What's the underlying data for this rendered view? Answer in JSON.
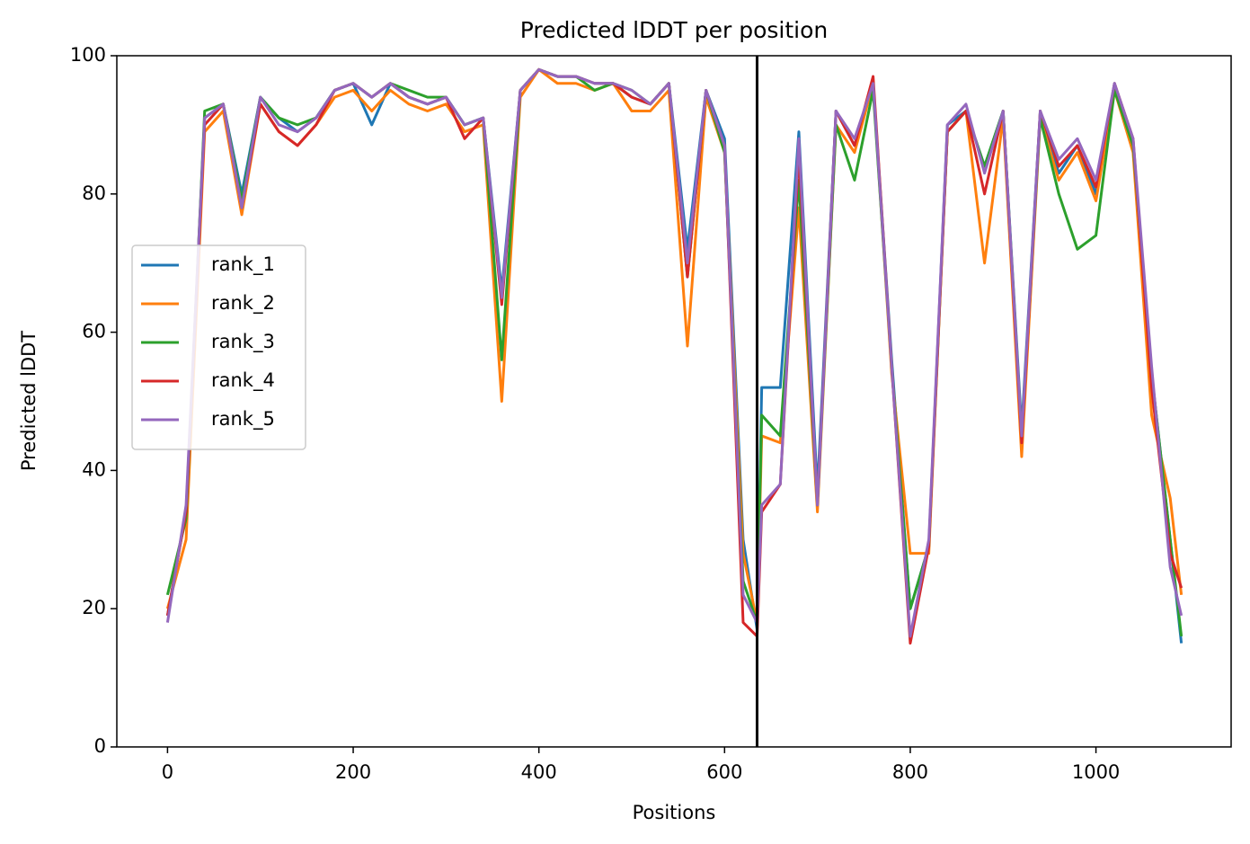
{
  "chart_data": {
    "type": "line",
    "title": "Predicted lDDT per position",
    "x_label": "Positions",
    "y_label": "Predicted lDDT",
    "xlim": [
      -54.6,
      1145.6
    ],
    "ylim": [
      0,
      100
    ],
    "xticks": [
      0,
      200,
      400,
      600,
      800,
      1000
    ],
    "yticks": [
      0,
      20,
      40,
      60,
      80,
      100
    ],
    "grid": false,
    "legend": "center left",
    "vline": 635,
    "vline_color": "#000000",
    "x": [
      0,
      20,
      40,
      60,
      80,
      100,
      120,
      140,
      160,
      180,
      200,
      220,
      240,
      260,
      280,
      300,
      320,
      340,
      360,
      380,
      400,
      420,
      440,
      460,
      480,
      500,
      520,
      540,
      560,
      580,
      600,
      620,
      635,
      640,
      660,
      680,
      700,
      720,
      740,
      760,
      780,
      800,
      820,
      840,
      860,
      880,
      900,
      920,
      940,
      960,
      980,
      1000,
      1020,
      1040,
      1060,
      1080,
      1092
    ],
    "series": [
      {
        "name": "rank_1",
        "color": "#1f77b4",
        "values": [
          19,
          34,
          91,
          93,
          80,
          94,
          91,
          89,
          91,
          95,
          96,
          90,
          96,
          94,
          93,
          94,
          90,
          91,
          66,
          95,
          98,
          97,
          97,
          96,
          96,
          94,
          93,
          96,
          72,
          95,
          88,
          30,
          17,
          52,
          52,
          89,
          37,
          92,
          87,
          96,
          56,
          20,
          29,
          90,
          92,
          84,
          92,
          46,
          92,
          83,
          87,
          80,
          96,
          87,
          54,
          30,
          15
        ]
      },
      {
        "name": "rank_2",
        "color": "#ff7f0e",
        "values": [
          20,
          30,
          89,
          92,
          77,
          93,
          89,
          87,
          90,
          94,
          95,
          92,
          95,
          93,
          92,
          93,
          89,
          90,
          50,
          94,
          98,
          96,
          96,
          95,
          96,
          92,
          92,
          95,
          58,
          94,
          86,
          28,
          18,
          45,
          44,
          78,
          34,
          90,
          86,
          96,
          54,
          28,
          28,
          89,
          92,
          70,
          91,
          42,
          91,
          82,
          86,
          79,
          95,
          86,
          48,
          36,
          22
        ]
      },
      {
        "name": "rank_3",
        "color": "#2ca02c",
        "values": [
          22,
          33,
          92,
          93,
          79,
          94,
          91,
          90,
          91,
          95,
          96,
          94,
          96,
          95,
          94,
          94,
          90,
          91,
          56,
          95,
          98,
          97,
          97,
          95,
          96,
          95,
          93,
          96,
          68,
          95,
          86,
          24,
          18,
          48,
          45,
          82,
          35,
          90,
          82,
          95,
          55,
          20,
          29,
          89,
          92,
          84,
          92,
          45,
          91,
          80,
          72,
          74,
          95,
          87,
          54,
          30,
          16
        ]
      },
      {
        "name": "rank_4",
        "color": "#d62728",
        "values": [
          19,
          34,
          90,
          93,
          78,
          93,
          89,
          87,
          90,
          95,
          96,
          94,
          96,
          94,
          93,
          94,
          88,
          91,
          64,
          95,
          98,
          97,
          97,
          96,
          96,
          94,
          93,
          96,
          68,
          95,
          87,
          18,
          16,
          34,
          38,
          86,
          35,
          92,
          87,
          97,
          55,
          15,
          29,
          89,
          92,
          80,
          92,
          44,
          92,
          84,
          87,
          81,
          96,
          88,
          52,
          28,
          23
        ]
      },
      {
        "name": "rank_5",
        "color": "#9467bd",
        "values": [
          18,
          35,
          91,
          93,
          78,
          94,
          90,
          89,
          91,
          95,
          96,
          94,
          96,
          94,
          93,
          94,
          90,
          91,
          65,
          95,
          98,
          97,
          97,
          96,
          96,
          95,
          93,
          96,
          70,
          95,
          87,
          22,
          18,
          35,
          38,
          88,
          35,
          92,
          88,
          96,
          55,
          16,
          30,
          90,
          93,
          83,
          92,
          45,
          92,
          85,
          88,
          82,
          96,
          88,
          55,
          26,
          19
        ]
      }
    ]
  }
}
